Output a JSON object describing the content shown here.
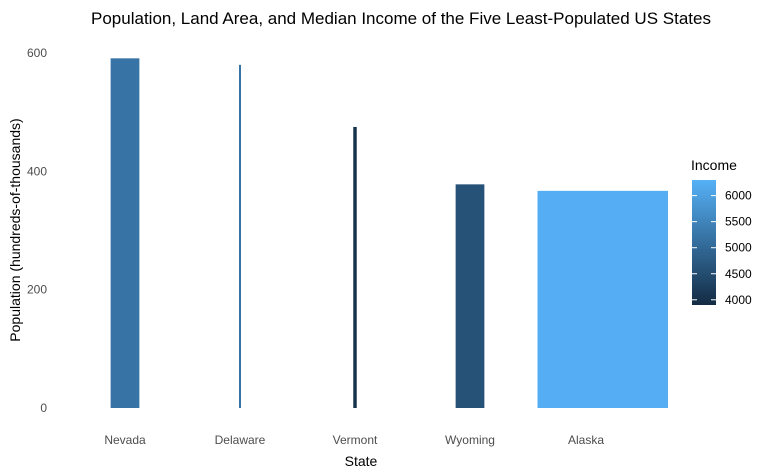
{
  "chart_data": {
    "type": "bar",
    "title": "Population, Land Area, and Median Income of the Five Least-Populated US States",
    "xlabel": "State",
    "ylabel": "Population (hundreds-of-thousands)",
    "ylim": [
      0,
      600
    ],
    "yticks": [
      0,
      200,
      400,
      600
    ],
    "grid": false,
    "legend": {
      "title": "Income",
      "placement": "right",
      "range": [
        3900,
        6300
      ],
      "ticks": [
        4000,
        4500,
        5000,
        5500,
        6000
      ],
      "low_color": "#132b43",
      "high_color": "#56b1f7"
    },
    "bars": [
      {
        "category": "Nevada",
        "population": 591,
        "land_area_width": 0.25,
        "income": 5200
      },
      {
        "category": "Delaware",
        "population": 580,
        "land_area_width": 0.01,
        "income": 5200
      },
      {
        "category": "Vermont",
        "population": 475,
        "land_area_width": 0.03,
        "income": 4000
      },
      {
        "category": "Wyoming",
        "population": 378,
        "land_area_width": 0.25,
        "income": 4600
      },
      {
        "category": "Alaska",
        "population": 367,
        "land_area_width": 1.45,
        "income": 6250
      }
    ]
  }
}
